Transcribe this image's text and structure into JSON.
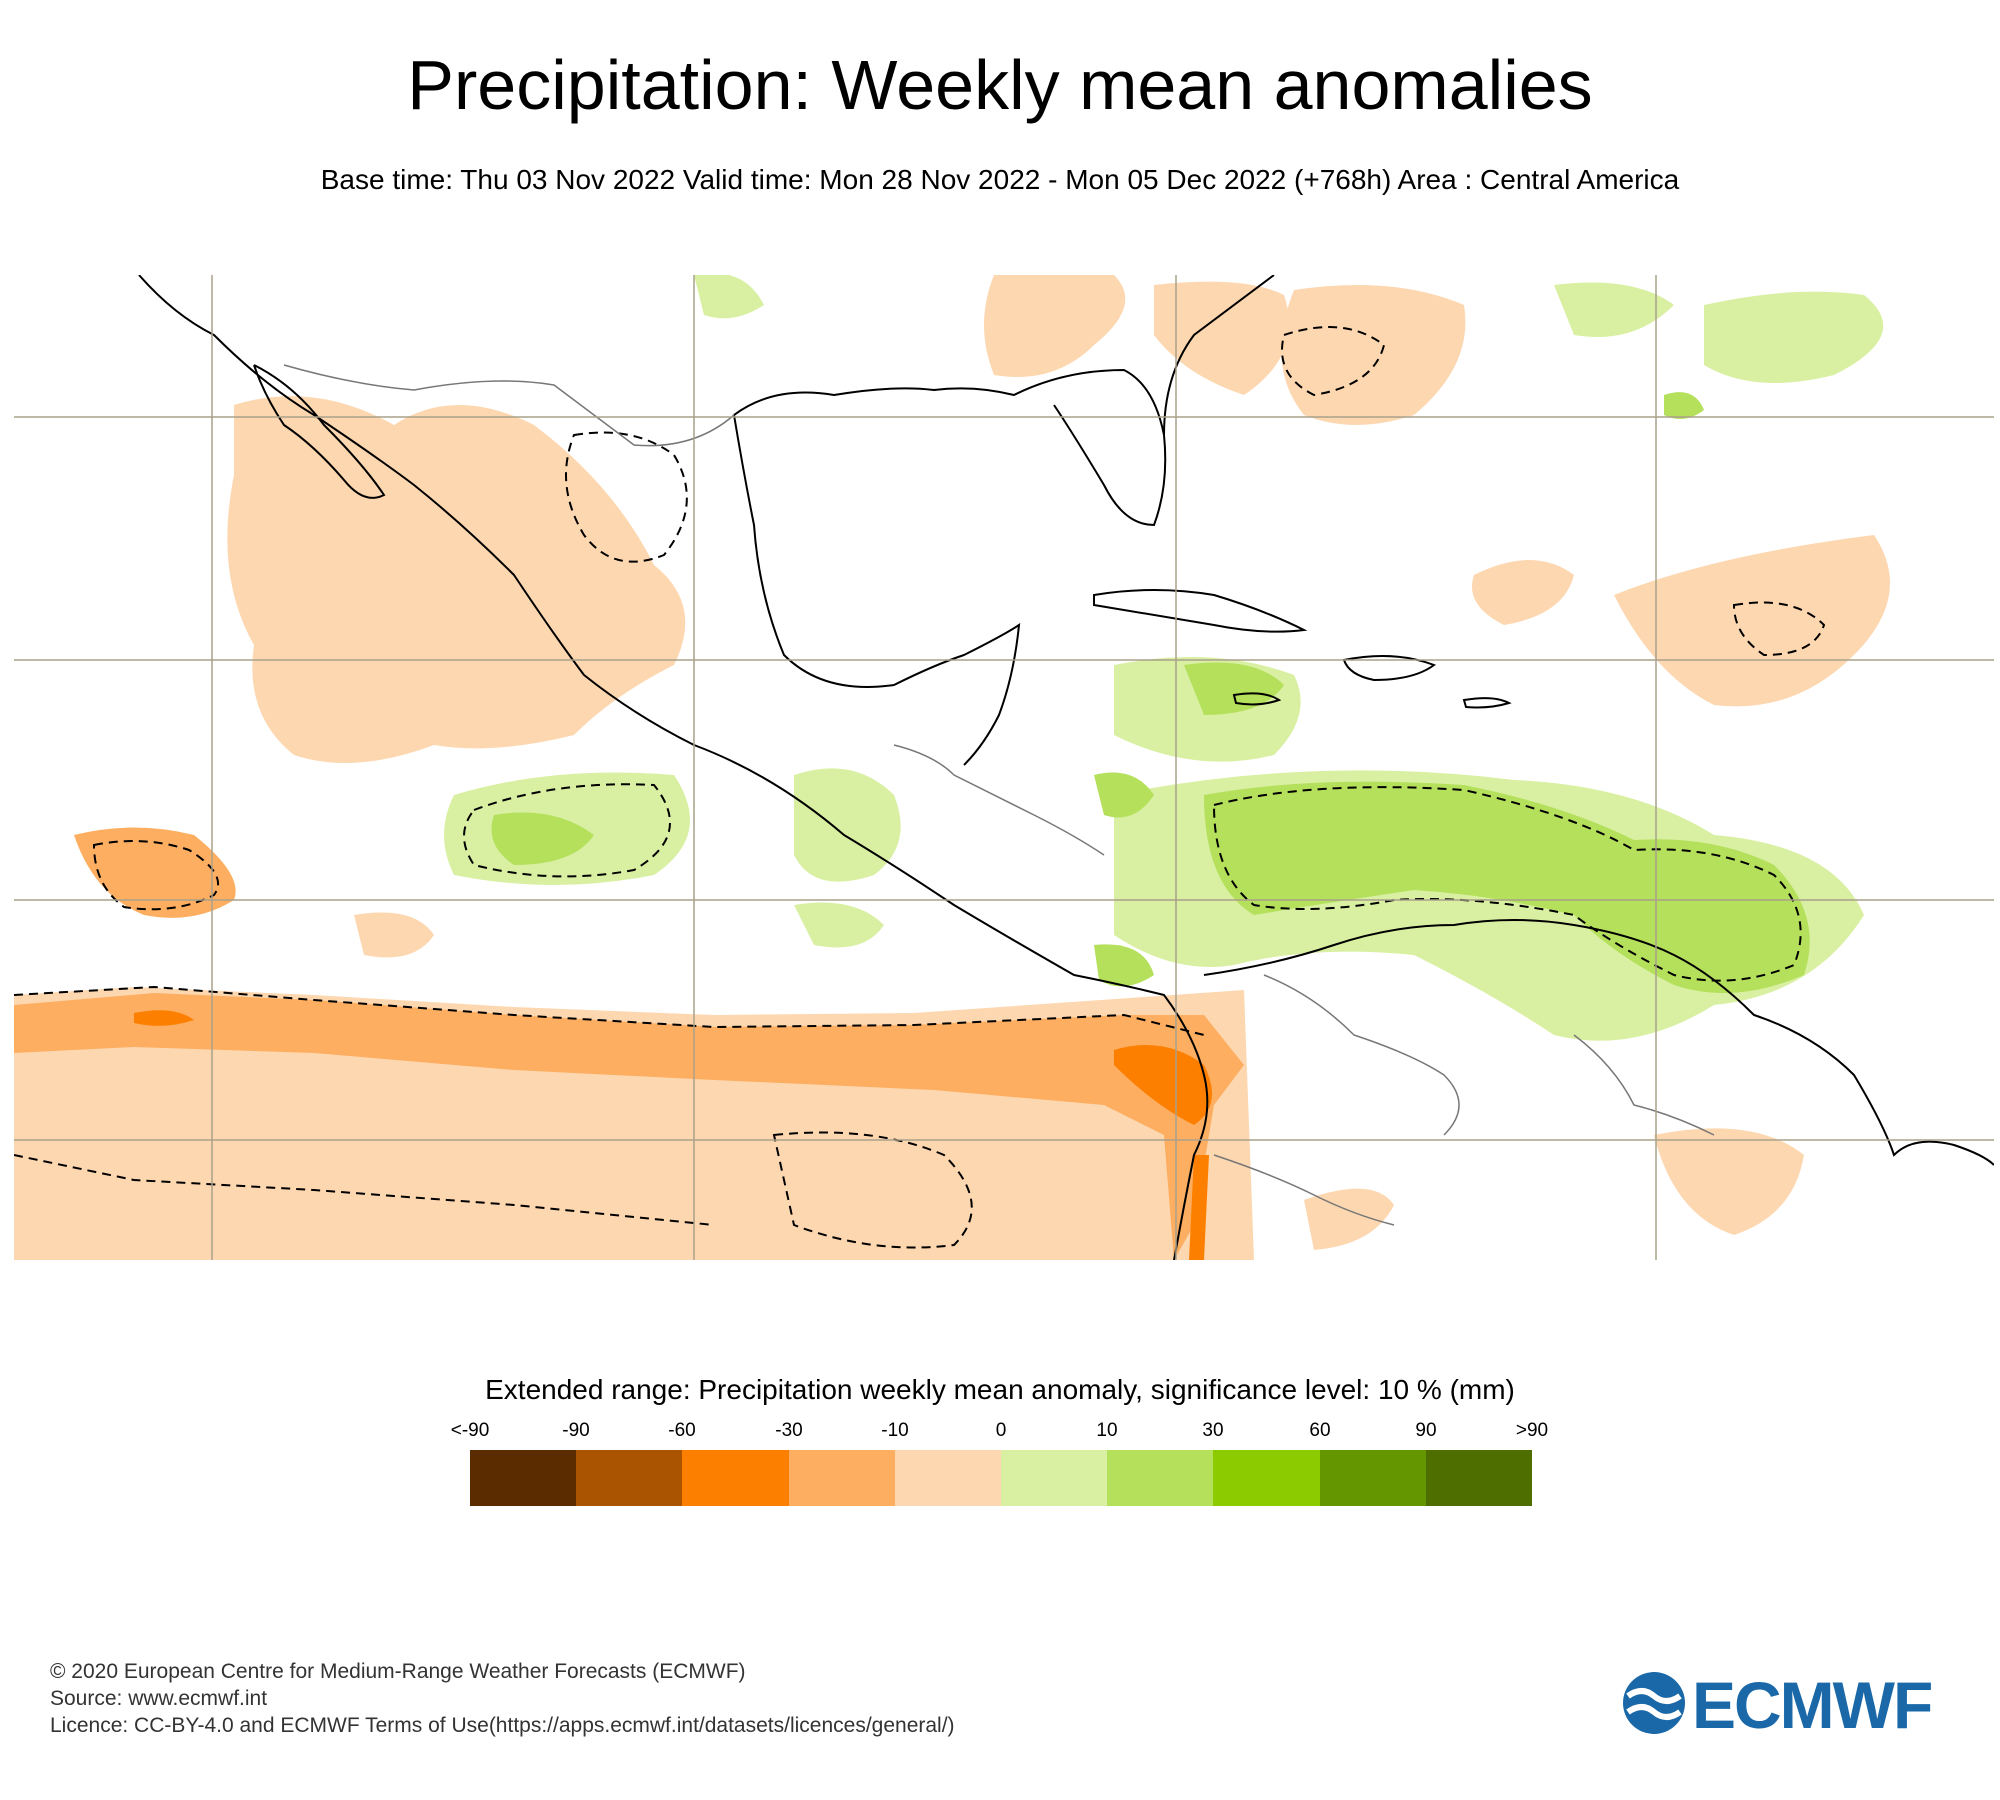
{
  "header": {
    "title": "Precipitation: Weekly mean anomalies",
    "subtitle": "Base time: Thu 03 Nov 2022 Valid time: Mon 28 Nov 2022 - Mon 05 Dec 2022 (+768h) Area : Central America"
  },
  "map": {
    "area": "Central America",
    "colors": {
      "land_outline": "#000000",
      "border": "#777777",
      "grid": "#a9a08a",
      "light_orange": "#fdd7b0",
      "orange": "#fdae61",
      "dark_orange": "#fd7f00",
      "light_green": "#d9f0a3",
      "green": "#b4e05b"
    }
  },
  "legend": {
    "title": "Extended range: Precipitation weekly mean anomaly, significance level: 10 % (mm)",
    "ticks": [
      "<-90",
      "-90",
      "-60",
      "-30",
      "-10",
      "0",
      "10",
      "30",
      "60",
      "90",
      ">90"
    ],
    "colors": [
      "#5a2c00",
      "#aa5300",
      "#fd7f00",
      "#fdae61",
      "#fdd7b0",
      "#d9f0a3",
      "#b4e05b",
      "#8bcb00",
      "#649600",
      "#4e6e00"
    ]
  },
  "footer": {
    "copyright": "© 2020 European Centre for Medium-Range Weather Forecasts (ECMWF)",
    "source": "Source: www.ecmwf.int",
    "licence": "Licence: CC-BY-4.0 and ECMWF Terms of Use(https://apps.ecmwf.int/datasets/licences/general/)"
  },
  "logo": {
    "text": "ECMWF",
    "color": "#1a68a8"
  }
}
